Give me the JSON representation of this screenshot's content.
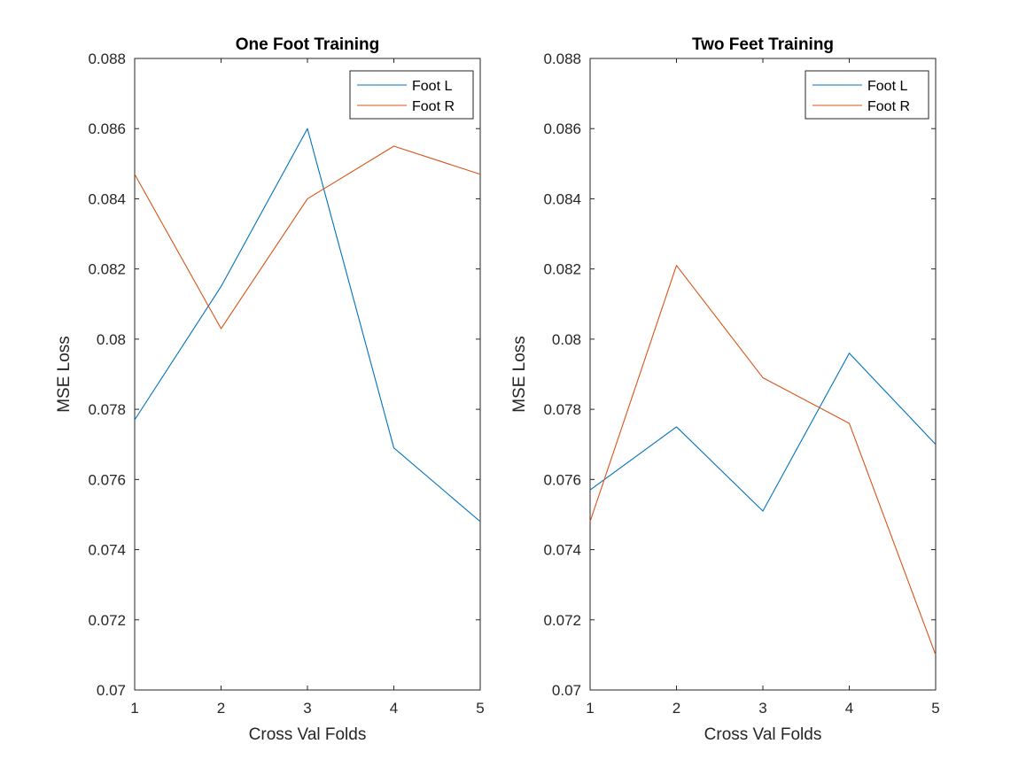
{
  "chart_data": [
    {
      "type": "line",
      "title": "One Foot Training",
      "xlabel": "Cross Val Folds",
      "ylabel": "MSE Loss",
      "xlim": [
        1,
        5
      ],
      "ylim": [
        0.07,
        0.088
      ],
      "x": [
        1,
        2,
        3,
        4,
        5
      ],
      "xticks": [
        "1",
        "2",
        "3",
        "4",
        "5"
      ],
      "yticks": [
        "0.07",
        "0.072",
        "0.074",
        "0.076",
        "0.078",
        "0.08",
        "0.082",
        "0.084",
        "0.086",
        "0.088"
      ],
      "grid": false,
      "legend_position": "top-right",
      "series": [
        {
          "name": "Foot L",
          "color": "#0072BD",
          "values": [
            0.0777,
            0.0815,
            0.086,
            0.0769,
            0.0748
          ]
        },
        {
          "name": "Foot R",
          "color": "#D95319",
          "values": [
            0.0847,
            0.0803,
            0.084,
            0.0855,
            0.0847
          ]
        }
      ]
    },
    {
      "type": "line",
      "title": "Two Feet Training",
      "xlabel": "Cross Val Folds",
      "ylabel": "MSE Loss",
      "xlim": [
        1,
        5
      ],
      "ylim": [
        0.07,
        0.088
      ],
      "x": [
        1,
        2,
        3,
        4,
        5
      ],
      "xticks": [
        "1",
        "2",
        "3",
        "4",
        "5"
      ],
      "yticks": [
        "0.07",
        "0.072",
        "0.074",
        "0.076",
        "0.078",
        "0.08",
        "0.082",
        "0.084",
        "0.086",
        "0.088"
      ],
      "grid": false,
      "legend_position": "top-right",
      "series": [
        {
          "name": "Foot L",
          "color": "#0072BD",
          "values": [
            0.0757,
            0.0775,
            0.0751,
            0.0796,
            0.077
          ]
        },
        {
          "name": "Foot R",
          "color": "#D95319",
          "values": [
            0.0748,
            0.0821,
            0.0789,
            0.0776,
            0.071
          ]
        }
      ]
    }
  ]
}
